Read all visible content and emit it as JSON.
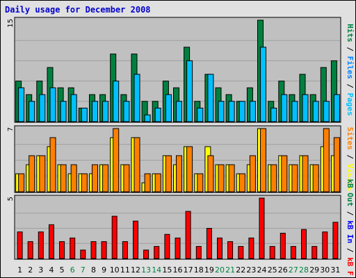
{
  "title": "Daily usage for December 2008",
  "chart_data": {
    "type": "bar",
    "x": [
      1,
      2,
      3,
      4,
      5,
      6,
      7,
      8,
      9,
      10,
      11,
      12,
      13,
      14,
      15,
      16,
      17,
      18,
      19,
      20,
      21,
      22,
      23,
      24,
      25,
      26,
      27,
      28,
      29,
      30,
      31
    ],
    "weekend_days": [
      6,
      7,
      13,
      14,
      20,
      21,
      27,
      28
    ],
    "panels": [
      {
        "name": "top",
        "ymax": 15,
        "ymax_label": "15",
        "side_labels": [
          "Pages",
          "Files",
          "Hits"
        ],
        "side_colors": [
          "#00c0ff",
          "#0080ff",
          "#008040"
        ],
        "series": [
          {
            "name": "Hits",
            "color": "#008040",
            "values": [
              6,
              4,
              6,
              8,
              5,
              5,
              2,
              4,
              4,
              10,
              4,
              10,
              3,
              3,
              6,
              5,
              11,
              3,
              7,
              5,
              4,
              3,
              5,
              15,
              3,
              6,
              4,
              7,
              4,
              8,
              9
            ]
          },
          {
            "name": "Files",
            "color": "#00c0ff",
            "values": [
              5,
              3,
              4,
              5,
              3,
              4,
              2,
              3,
              3,
              6,
              3,
              7,
              1,
              2,
              4,
              3,
              9,
              2,
              7,
              3,
              3,
              3,
              3,
              11,
              2,
              4,
              3,
              4,
              3,
              3,
              4
            ]
          }
        ]
      },
      {
        "name": "middle",
        "ymax": 7,
        "ymax_label": "7",
        "side_labels": [
          "Visits",
          "Sites"
        ],
        "side_colors": [
          "#ffff00",
          "#ff8000"
        ],
        "series": [
          {
            "name": "Visits",
            "color": "#ffff00",
            "values": [
              2,
              3,
              4,
              5,
              3,
              2,
              2,
              2,
              3,
              6,
              3,
              6,
              1,
              2,
              4,
              3,
              5,
              2,
              5,
              3,
              3,
              2,
              3,
              7,
              3,
              4,
              3,
              4,
              3,
              5,
              4
            ]
          },
          {
            "name": "Sites",
            "color": "#ff8000",
            "values": [
              2,
              4,
              4,
              6,
              3,
              3,
              2,
              3,
              3,
              7,
              3,
              6,
              2,
              2,
              4,
              4,
              5,
              2,
              4,
              3,
              3,
              2,
              4,
              7,
              3,
              4,
              3,
              4,
              3,
              7,
              6
            ]
          }
        ]
      },
      {
        "name": "bottom",
        "ymax": 5,
        "ymax_label": "5",
        "side_labels": [
          "kB F",
          "kB In",
          "kB Out"
        ],
        "side_colors": [
          "#ff0000",
          "#0000ff",
          "#008040"
        ],
        "series": [
          {
            "name": "kB F",
            "color": "#ff0000",
            "values": [
              2.2,
              1.4,
              2.2,
              2.8,
              1.4,
              1.7,
              0.7,
              1.4,
              1.4,
              3.5,
              1.4,
              3.1,
              0.7,
              1.0,
              2.0,
              1.7,
              3.9,
              1.0,
              2.5,
              1.7,
              1.4,
              1.0,
              1.7,
              5.0,
              1.0,
              2.1,
              1.0,
              2.4,
              1.0,
              2.2,
              3.0
            ]
          }
        ]
      }
    ]
  }
}
